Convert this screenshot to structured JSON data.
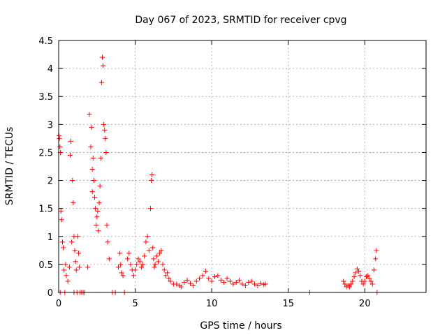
{
  "chart_data": {
    "type": "scatter",
    "title": "Day 067 of 2023, SRMTID for receiver cpvg",
    "xlabel": "GPS time / hours",
    "ylabel": "SRMTID / TECUs",
    "xlim": [
      0,
      24
    ],
    "ylim": [
      0,
      4.5
    ],
    "xticks": [
      0,
      5,
      10,
      15,
      20
    ],
    "xtick_labels": [
      "0",
      "5",
      "10",
      "15",
      "20"
    ],
    "yticks": [
      0,
      0.5,
      1,
      1.5,
      2,
      2.5,
      3,
      3.5,
      4,
      4.5
    ],
    "ytick_labels": [
      "0",
      "0.5",
      "1",
      "1.5",
      "2",
      "2.5",
      "3",
      "3.5",
      "4",
      "4.5"
    ],
    "grid": true,
    "marker": "+",
    "series": [
      {
        "name": "SRMTID",
        "color": "#ff0000",
        "x": [
          0.02,
          0.05,
          0.08,
          0.1,
          0.12,
          0.15,
          0.2,
          0.25,
          0.3,
          0.35,
          0.4,
          0.45,
          0.5,
          0.6,
          0.7,
          0.75,
          0.8,
          0.85,
          0.9,
          0.95,
          1.0,
          1.0,
          1.05,
          1.1,
          1.15,
          1.2,
          1.25,
          1.3,
          1.35,
          1.4,
          1.5,
          1.6,
          1.7,
          1.9,
          2.0,
          2.1,
          2.15,
          2.2,
          2.2,
          2.25,
          2.3,
          2.35,
          2.4,
          2.45,
          2.5,
          2.55,
          2.6,
          2.65,
          2.7,
          2.75,
          2.8,
          2.85,
          2.9,
          2.95,
          3.0,
          3.05,
          3.1,
          3.15,
          3.2,
          3.3,
          3.5,
          3.7,
          3.9,
          4.0,
          4.05,
          4.1,
          4.2,
          4.3,
          4.5,
          4.6,
          4.7,
          4.8,
          4.9,
          5.0,
          5.1,
          5.2,
          5.3,
          5.4,
          5.5,
          5.6,
          5.7,
          5.8,
          5.9,
          6.0,
          6.05,
          6.1,
          6.15,
          6.2,
          6.25,
          6.3,
          6.4,
          6.5,
          6.6,
          6.7,
          6.8,
          6.9,
          7.0,
          7.1,
          7.2,
          7.3,
          7.5,
          7.7,
          7.9,
          8.0,
          8.2,
          8.4,
          8.6,
          8.8,
          9.0,
          9.2,
          9.4,
          9.6,
          9.8,
          10.0,
          10.2,
          10.4,
          10.6,
          10.8,
          11.0,
          11.2,
          11.4,
          11.6,
          11.8,
          12.0,
          12.2,
          12.4,
          12.6,
          12.8,
          13.0,
          13.2,
          13.4,
          13.5,
          16.4,
          18.6,
          18.7,
          18.8,
          18.9,
          19.0,
          19.1,
          19.2,
          19.3,
          19.4,
          19.5,
          19.6,
          19.7,
          19.8,
          19.9,
          20.0,
          20.1,
          20.2,
          20.3,
          20.4,
          20.5,
          20.6,
          20.7,
          20.75,
          20.8
        ],
        "y": [
          2.8,
          2.75,
          2.6,
          0.0,
          2.5,
          1.45,
          1.3,
          0.9,
          0.8,
          0.4,
          0.0,
          0.5,
          0.3,
          0.2,
          0.45,
          2.45,
          2.7,
          0.9,
          2.0,
          1.6,
          1.0,
          0.0,
          0.75,
          0.55,
          0.4,
          0.0,
          1.0,
          0.7,
          0.45,
          0.0,
          0.0,
          0.0,
          0.0,
          0.45,
          3.18,
          2.6,
          2.95,
          2.2,
          1.8,
          2.4,
          2.0,
          1.7,
          1.5,
          1.2,
          1.35,
          1.45,
          1.1,
          1.6,
          1.9,
          2.4,
          3.75,
          4.2,
          4.05,
          3.0,
          2.9,
          2.75,
          2.5,
          1.2,
          0.9,
          0.6,
          0.0,
          0.0,
          0.45,
          0.7,
          0.5,
          0.35,
          0.3,
          0.0,
          0.6,
          0.7,
          0.5,
          0.4,
          0.3,
          0.4,
          0.5,
          0.6,
          0.55,
          0.45,
          0.5,
          0.65,
          0.9,
          1.0,
          0.75,
          1.5,
          2.0,
          2.1,
          0.8,
          0.6,
          0.45,
          0.5,
          0.65,
          0.55,
          0.7,
          0.75,
          0.5,
          0.4,
          0.3,
          0.35,
          0.25,
          0.2,
          0.15,
          0.15,
          0.12,
          0.1,
          0.18,
          0.22,
          0.16,
          0.12,
          0.2,
          0.25,
          0.3,
          0.38,
          0.25,
          0.2,
          0.28,
          0.3,
          0.22,
          0.18,
          0.25,
          0.2,
          0.15,
          0.18,
          0.22,
          0.15,
          0.12,
          0.18,
          0.2,
          0.15,
          0.12,
          0.16,
          0.14,
          0.15,
          0.0,
          0.2,
          0.15,
          0.1,
          0.12,
          0.1,
          0.15,
          0.2,
          0.28,
          0.35,
          0.42,
          0.38,
          0.3,
          0.2,
          0.15,
          0.2,
          0.28,
          0.3,
          0.25,
          0.2,
          0.15,
          0.4,
          0.6,
          0.75,
          0.0
        ]
      }
    ]
  }
}
